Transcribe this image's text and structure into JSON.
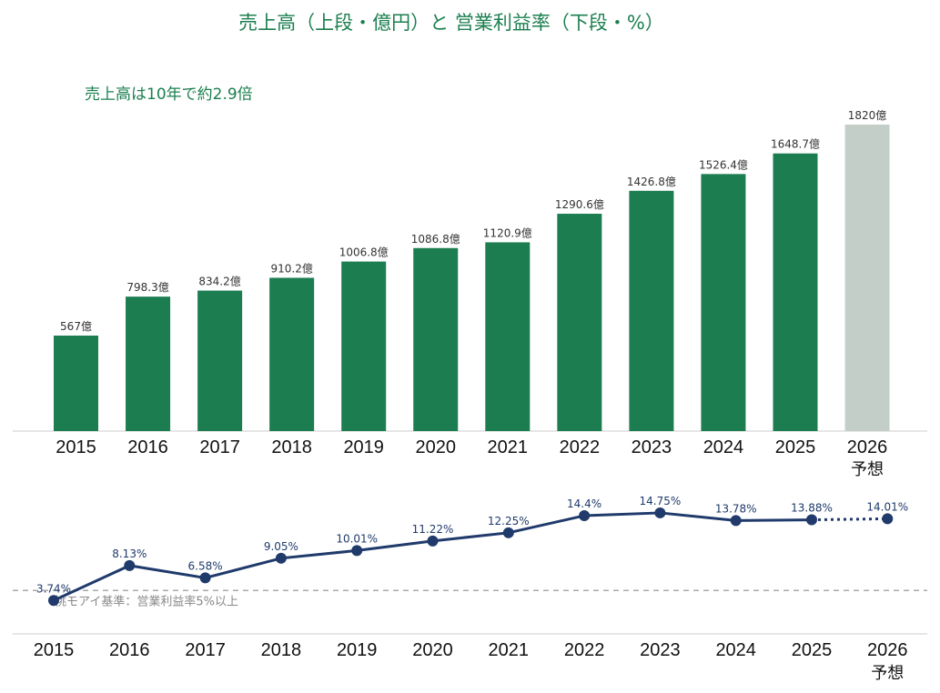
{
  "title": "売上高（上段・億円）と 営業利益率（下段・%）",
  "note": "売上高は10年で約2.9倍",
  "colors": {
    "actual_bar": "#1b7d50",
    "forecast_bar": "#c4cec8",
    "line": "#1f3a6b",
    "reference_line": "#aaaaaa",
    "axis": "#cccccc",
    "title": "#1b7f4f"
  },
  "chart_data": [
    {
      "type": "bar",
      "categories": [
        "2015",
        "2016",
        "2017",
        "2018",
        "2019",
        "2020",
        "2021",
        "2022",
        "2023",
        "2024",
        "2025",
        "2026"
      ],
      "category_sublabels": [
        "",
        "",
        "",
        "",
        "",
        "",
        "",
        "",
        "",
        "",
        "",
        "予想"
      ],
      "values": [
        567,
        798.3,
        834.2,
        910.2,
        1006.8,
        1086.8,
        1120.9,
        1290.6,
        1426.8,
        1526.4,
        1648.7,
        1820
      ],
      "value_labels": [
        "567億",
        "798.3億",
        "834.2億",
        "910.2億",
        "1006.8億",
        "1086.8億",
        "1120.9億",
        "1290.6億",
        "1426.8億",
        "1526.4億",
        "1648.7億",
        "1820億"
      ],
      "forecast": [
        false,
        false,
        false,
        false,
        false,
        false,
        false,
        false,
        false,
        false,
        false,
        true
      ],
      "ylim": [
        0,
        1820
      ],
      "grid": false
    },
    {
      "type": "line",
      "categories": [
        "2015",
        "2016",
        "2017",
        "2018",
        "2019",
        "2020",
        "2021",
        "2022",
        "2023",
        "2024",
        "2025",
        "2026"
      ],
      "category_sublabels": [
        "",
        "",
        "",
        "",
        "",
        "",
        "",
        "",
        "",
        "",
        "",
        "予想"
      ],
      "values": [
        3.74,
        8.13,
        6.58,
        9.05,
        10.01,
        11.22,
        12.25,
        14.4,
        14.75,
        13.78,
        13.88,
        14.01
      ],
      "value_labels": [
        "3.74%",
        "8.13%",
        "6.58%",
        "9.05%",
        "10.01%",
        "11.22%",
        "12.25%",
        "14.4%",
        "14.75%",
        "13.78%",
        "13.88%",
        "14.01%"
      ],
      "forecast": [
        false,
        false,
        false,
        false,
        false,
        false,
        false,
        false,
        false,
        false,
        false,
        true
      ],
      "reference": {
        "value": 5,
        "label": "桃モアイ基準：営業利益率5%以上"
      },
      "ylim": [
        3.2,
        15.2
      ],
      "grid": false
    }
  ]
}
